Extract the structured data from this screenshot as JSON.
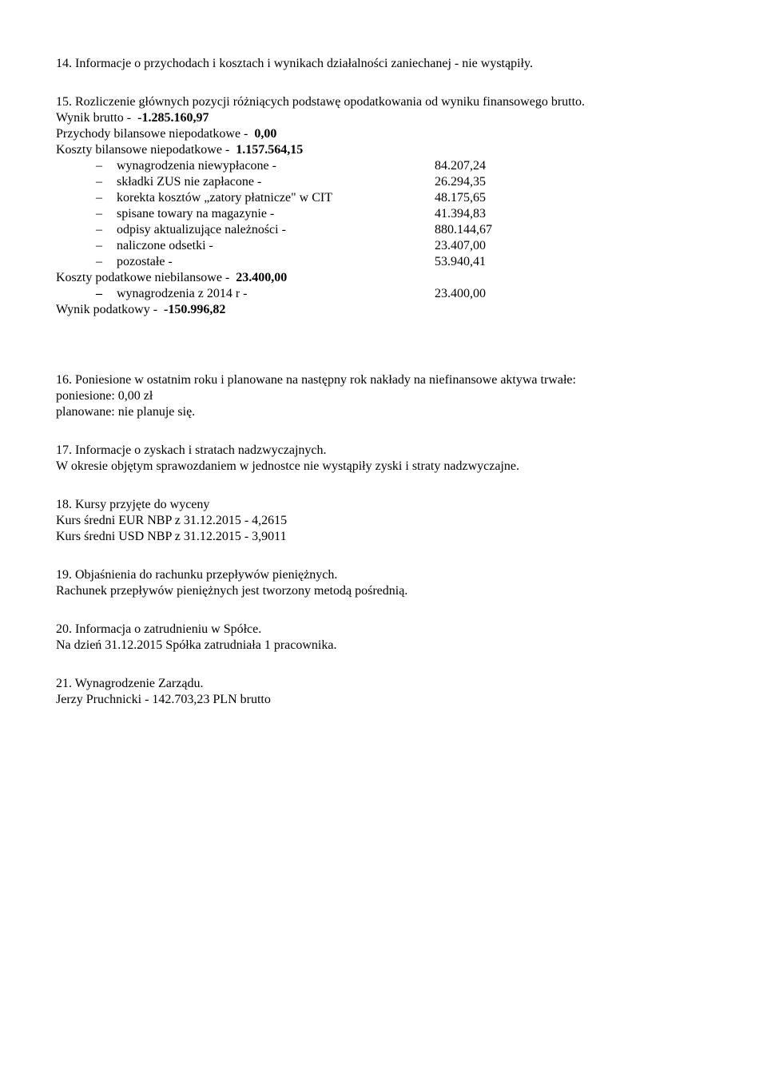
{
  "s14": {
    "text": "14. Informacje o przychodach i kosztach i wynikach działalności zaniechanej - nie wystąpiły."
  },
  "s15": {
    "heading": "15. Rozliczenie głównych pozycji różniących podstawę opodatkowania od wyniku finansowego brutto.",
    "rows": [
      {
        "label": "Wynik brutto -",
        "value": "-1.285.160,97",
        "bold": true
      },
      {
        "label": "Przychody bilansowe niepodatkowe -",
        "value": "0,00",
        "bold": true
      },
      {
        "label": "Koszty bilansowe niepodatkowe -",
        "value": "1.157.564,15",
        "bold": true
      }
    ],
    "sub": [
      {
        "label": "wynagrodzenia niewypłacone  -",
        "value": "84.207,24"
      },
      {
        "label": "składki ZUS nie zapłacone -",
        "value": "26.294,35"
      },
      {
        "label": "korekta kosztów „zatory płatnicze\" w CIT",
        "value": "48.175,65"
      },
      {
        "label": "spisane towary na magazynie    -",
        "value": "41.394,83"
      },
      {
        "label": "odpisy aktualizujące należności -",
        "value": "880.144,67"
      },
      {
        "label": "naliczone odsetki -",
        "value": "23.407,00"
      },
      {
        "label": "pozostałe -",
        "value": "53.940,41"
      }
    ],
    "row2": {
      "label": "Koszty podatkowe niebilansowe -",
      "value": "23.400,00",
      "bold": true
    },
    "sub2": [
      {
        "label": "wynagrodzenia z 2014 r -",
        "value": "23.400,00"
      }
    ],
    "row3": {
      "label": "Wynik podatkowy -",
      "value": "-150.996,82",
      "bold": true
    }
  },
  "s16": {
    "l1": "16. Poniesione w ostatnim roku i planowane na następny rok nakłady na niefinansowe aktywa trwałe:",
    "l2": "poniesione: 0,00 zł",
    "l3": "planowane: nie planuje się."
  },
  "s17": {
    "l1": "17. Informacje o zyskach i stratach nadzwyczajnych.",
    "l2": "W okresie objętym sprawozdaniem w jednostce nie wystąpiły zyski i straty nadzwyczajne."
  },
  "s18": {
    "l1": "18. Kursy przyjęte do wyceny",
    "l2": "Kurs średni EUR NBP z 31.12.2015 -  4,2615",
    "l3": "Kurs średni USD NBP z 31.12.2015 - 3,9011"
  },
  "s19": {
    "l1": "19. Objaśnienia do rachunku przepływów pieniężnych.",
    "l2": "Rachunek przepływów pieniężnych jest tworzony metodą pośrednią."
  },
  "s20": {
    "l1": "20. Informacja o  zatrudnieniu w Spółce.",
    "l2": "Na dzień 31.12.2015 Spółka zatrudniała 1 pracownika."
  },
  "s21": {
    "l1": "21. Wynagrodzenie Zarządu.",
    "l2": "Jerzy Pruchnicki -  142.703,23 PLN brutto"
  }
}
